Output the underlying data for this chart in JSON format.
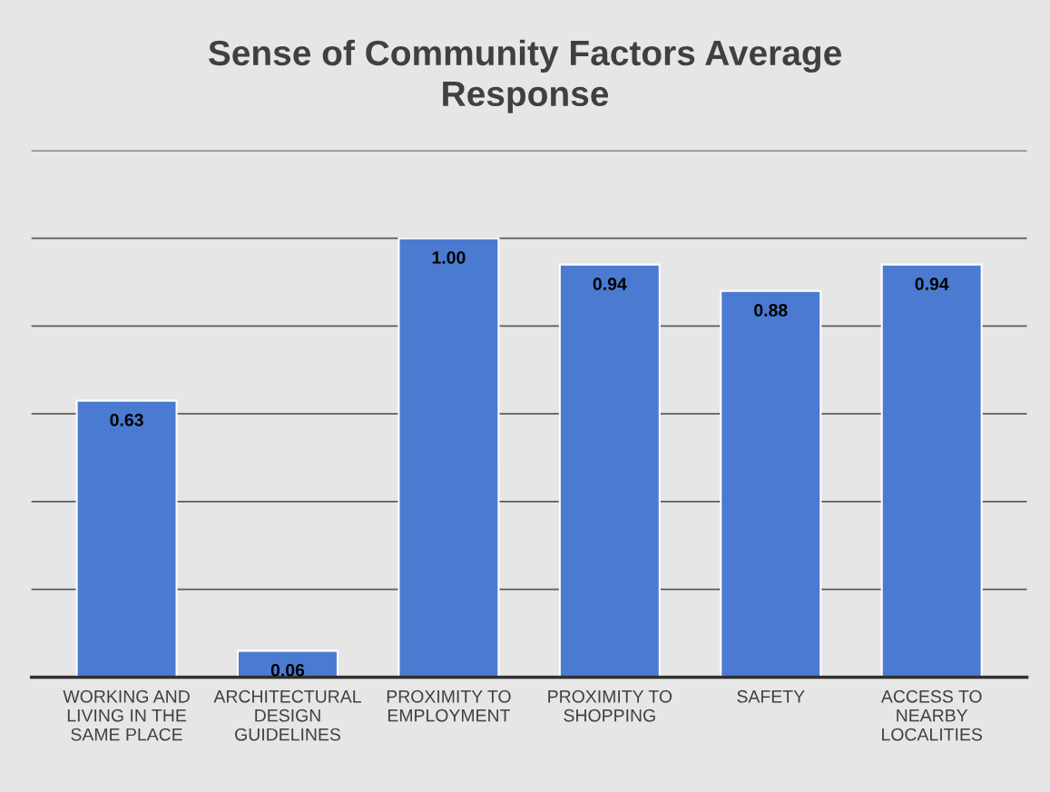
{
  "chart_data": {
    "type": "bar",
    "title": "Sense of Community Factors Average\nResponse",
    "categories": [
      "WORKING AND\nLIVING IN THE\nSAME PLACE",
      "ARCHITECTURAL\nDESIGN\nGUIDELINES",
      "PROXIMITY TO\nEMPLOYMENT",
      "PROXIMITY TO\nSHOPPING",
      "SAFETY",
      "ACCESS TO\nNEARBY\nLOCALITIES"
    ],
    "values": [
      0.63,
      0.06,
      1.0,
      0.94,
      0.88,
      0.94
    ],
    "value_labels": [
      "0.63",
      "0.06",
      "1.00",
      "0.94",
      "0.88",
      "0.94"
    ],
    "color": "#4a7bd0",
    "ylim": [
      0,
      1.2
    ],
    "yticks": [
      {
        "value": 0,
        "label": null
      },
      {
        "value": 0.2,
        "label": null
      },
      {
        "value": 0.4,
        "label": null
      },
      {
        "value": 0.6,
        "label": null
      },
      {
        "value": 0.8,
        "label": null
      },
      {
        "value": 1.0,
        "label": null
      },
      {
        "value": 1.2,
        "label": null
      }
    ],
    "grid": "y",
    "tick_labels": "x",
    "legend": false
  }
}
